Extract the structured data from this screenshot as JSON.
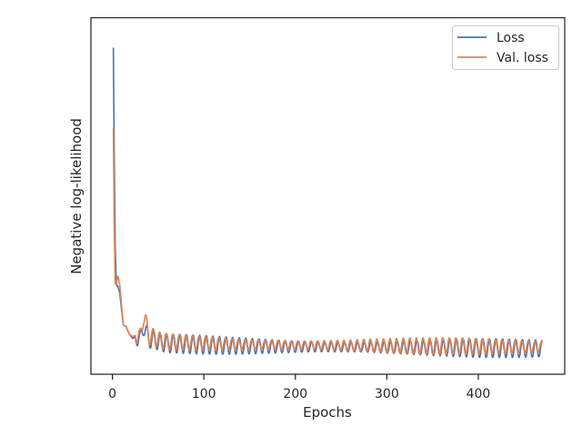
{
  "chart_data": {
    "type": "line",
    "title": "",
    "xlabel": "Epochs",
    "ylabel": "Negative log-likelihood",
    "xlim": [
      -23.5,
      494.5
    ],
    "ylim": [
      0,
      1
    ],
    "y_ticks_labeled": false,
    "x_ticks": [
      0,
      100,
      200,
      300,
      400
    ],
    "x_tick_labels": [
      "0",
      "100",
      "200",
      "300",
      "400"
    ],
    "grid": false,
    "legend_placement": "top-right",
    "colors": {
      "Loss": "#4c72b0",
      "Val. loss": "#dd8452",
      "axes": "#262626"
    },
    "series": [
      {
        "name": "Loss",
        "color": "#4c72b0",
        "x": [
          1,
          2,
          3,
          4,
          5,
          6,
          8,
          10,
          12,
          15,
          18,
          22,
          26,
          30,
          34,
          36,
          40,
          45,
          50,
          60,
          80,
          100,
          110,
          120,
          130,
          150,
          180,
          200,
          220,
          250,
          280,
          300,
          320,
          350,
          380,
          400,
          420,
          450,
          470
        ],
        "y": [
          0.95,
          0.62,
          0.36,
          0.27,
          0.24,
          0.24,
          0.22,
          0.17,
          0.125,
          0.12,
          0.1,
          0.085,
          0.09,
          0.08,
          0.12,
          0.11,
          0.08,
          0.085,
          0.075,
          0.07,
          0.068,
          0.066,
          0.065,
          0.064,
          0.063,
          0.062,
          0.061,
          0.06,
          0.06,
          0.059,
          0.059,
          0.058,
          0.058,
          0.057,
          0.057,
          0.056,
          0.056,
          0.055,
          0.055
        ],
        "oscillation_amplitude": 0.028,
        "oscillation_period": 7.2
      },
      {
        "name": "Val. loss",
        "color": "#dd8452",
        "x": [
          1,
          2,
          3,
          4,
          5,
          6,
          8,
          10,
          12,
          15,
          18,
          22,
          26,
          30,
          34,
          36,
          40,
          45,
          50,
          60,
          80,
          100,
          110,
          120,
          130,
          150,
          180,
          200,
          220,
          250,
          280,
          300,
          320,
          350,
          380,
          400,
          420,
          450,
          470
        ],
        "y": [
          0.71,
          0.42,
          0.25,
          0.245,
          0.26,
          0.27,
          0.245,
          0.18,
          0.125,
          0.12,
          0.1,
          0.09,
          0.095,
          0.085,
          0.15,
          0.14,
          0.09,
          0.09,
          0.08,
          0.075,
          0.073,
          0.071,
          0.07,
          0.069,
          0.068,
          0.067,
          0.066,
          0.065,
          0.065,
          0.064,
          0.064,
          0.063,
          0.063,
          0.062,
          0.062,
          0.061,
          0.061,
          0.06,
          0.06
        ],
        "oscillation_amplitude": 0.025,
        "oscillation_period": 7.2
      }
    ]
  }
}
